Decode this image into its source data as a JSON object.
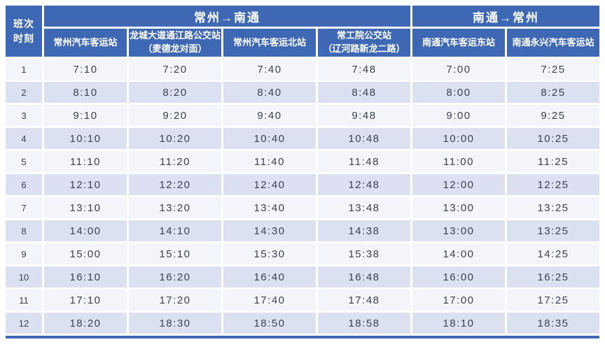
{
  "colors": {
    "header_bg": "#3e68b4",
    "stripe_odd": "#f3f5fb",
    "stripe_even": "#dce1f2",
    "time_text": "#3d414c"
  },
  "table": {
    "corner_label": "班次\n时刻",
    "groups": [
      {
        "label": "常州→南通",
        "cols": 4
      },
      {
        "label": "南通→常州",
        "cols": 2
      }
    ],
    "stations": [
      "常州汽车客运站",
      "龙城大道通江路公交站\n（麦德龙对面）",
      "常州汽车客运北站",
      "常工院公交站\n（辽河路新龙二路）",
      "南通汽车客运东站",
      "南通永兴汽车客运站"
    ],
    "rows": [
      {
        "no": "1",
        "times": [
          "7:10",
          "7:20",
          "7:40",
          "7:48",
          "7:00",
          "7:25"
        ]
      },
      {
        "no": "2",
        "times": [
          "8:10",
          "8:20",
          "8:40",
          "8:48",
          "8:00",
          "8:25"
        ]
      },
      {
        "no": "3",
        "times": [
          "9:10",
          "9:20",
          "9:40",
          "9:48",
          "9:00",
          "9:25"
        ]
      },
      {
        "no": "4",
        "times": [
          "10:10",
          "10:20",
          "10:40",
          "10:48",
          "10:00",
          "10:25"
        ]
      },
      {
        "no": "5",
        "times": [
          "11:10",
          "11:20",
          "11:40",
          "11:48",
          "11:00",
          "11:25"
        ]
      },
      {
        "no": "6",
        "times": [
          "12:10",
          "12:20",
          "12:40",
          "12:48",
          "12:00",
          "12:25"
        ]
      },
      {
        "no": "7",
        "times": [
          "13:10",
          "13:20",
          "13:40",
          "13:48",
          "13:00",
          "13:25"
        ]
      },
      {
        "no": "8",
        "times": [
          "14:00",
          "14:10",
          "14:30",
          "14:38",
          "13:00",
          "13:25"
        ]
      },
      {
        "no": "9",
        "times": [
          "15:00",
          "15:10",
          "15:30",
          "15:38",
          "14:00",
          "14:25"
        ]
      },
      {
        "no": "10",
        "times": [
          "16:10",
          "16:20",
          "16:40",
          "16:48",
          "16:00",
          "16:25"
        ]
      },
      {
        "no": "11",
        "times": [
          "17:10",
          "17:20",
          "17:40",
          "17:48",
          "17:00",
          "17:25"
        ]
      },
      {
        "no": "12",
        "times": [
          "18:20",
          "18:30",
          "18:50",
          "18:58",
          "18:10",
          "18:35"
        ]
      }
    ]
  }
}
